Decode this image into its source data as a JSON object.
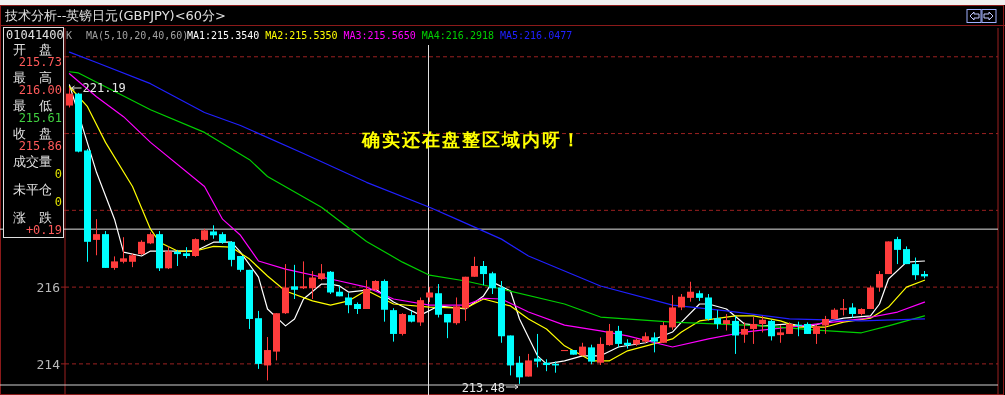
{
  "chart_data": {
    "type": "candlestick",
    "title": "技术分析--英镑日元(GBPJPY)<60分>",
    "categories": [
      null,
      null,
      null,
      null,
      null,
      null,
      null,
      null,
      null,
      null,
      null,
      null,
      null,
      null,
      null,
      null,
      null,
      null,
      null,
      null,
      null,
      null,
      null,
      null,
      null,
      null,
      null,
      null,
      null,
      null,
      null,
      null,
      null,
      null,
      null,
      null,
      null,
      null,
      null,
      null,
      null,
      null,
      null,
      null,
      null,
      null,
      null,
      null,
      null,
      null,
      null,
      null,
      null,
      null,
      null,
      null,
      null,
      null,
      null,
      null,
      null,
      null,
      null,
      null,
      null,
      null,
      null,
      null,
      null,
      null,
      null,
      null,
      null,
      null,
      null,
      null,
      null,
      null,
      null,
      null,
      null,
      null,
      null,
      null,
      null,
      null,
      null,
      null,
      null,
      null,
      null,
      null,
      null,
      null,
      null,
      null
    ],
    "ohlc": [
      [
        220.73,
        221.19,
        220.68,
        221.04
      ],
      [
        221.04,
        221.06,
        219.51,
        219.53
      ],
      [
        219.56,
        219.6,
        216.66,
        217.18
      ],
      [
        217.23,
        217.77,
        216.83,
        217.38
      ],
      [
        217.38,
        217.46,
        216.5,
        216.5
      ],
      [
        216.5,
        216.8,
        216.45,
        216.67
      ],
      [
        216.66,
        217.3,
        216.62,
        216.75
      ],
      [
        216.66,
        216.87,
        216.52,
        216.83
      ],
      [
        216.86,
        217.22,
        216.84,
        217.18
      ],
      [
        217.14,
        217.43,
        217.12,
        217.38
      ],
      [
        217.38,
        217.46,
        216.42,
        216.49
      ],
      [
        216.49,
        217.06,
        216.47,
        216.93
      ],
      [
        216.92,
        216.97,
        216.55,
        216.86
      ],
      [
        216.88,
        217.04,
        216.75,
        216.81
      ],
      [
        216.81,
        217.27,
        216.79,
        217.25
      ],
      [
        217.23,
        217.52,
        217.2,
        217.48
      ],
      [
        217.45,
        217.61,
        217.26,
        217.35
      ],
      [
        217.38,
        217.43,
        217.13,
        217.16
      ],
      [
        217.18,
        217.2,
        216.54,
        216.71
      ],
      [
        216.81,
        216.81,
        216.4,
        216.45
      ],
      [
        216.45,
        216.45,
        214.91,
        215.17
      ],
      [
        215.19,
        215.38,
        213.87,
        214.0
      ],
      [
        213.96,
        214.7,
        213.57,
        214.36
      ],
      [
        214.32,
        215.32,
        214.09,
        215.32
      ],
      [
        215.32,
        216.6,
        215.3,
        215.99
      ],
      [
        216.02,
        216.58,
        215.69,
        215.93
      ],
      [
        215.97,
        216.67,
        215.95,
        216.02
      ],
      [
        215.97,
        216.42,
        215.69,
        216.25
      ],
      [
        216.21,
        216.6,
        216.18,
        216.36
      ],
      [
        216.4,
        216.42,
        215.82,
        215.86
      ],
      [
        215.88,
        216.03,
        215.76,
        215.76
      ],
      [
        215.73,
        215.84,
        215.32,
        215.53
      ],
      [
        215.56,
        215.6,
        215.3,
        215.43
      ],
      [
        215.43,
        216.18,
        215.43,
        215.95
      ],
      [
        215.93,
        216.18,
        215.92,
        216.16
      ],
      [
        216.16,
        216.2,
        215.1,
        215.41
      ],
      [
        215.4,
        215.45,
        214.58,
        214.78
      ],
      [
        214.78,
        215.32,
        214.74,
        215.3
      ],
      [
        215.27,
        215.38,
        215.08,
        215.1
      ],
      [
        215.08,
        215.73,
        214.99,
        215.66
      ],
      [
        215.73,
        216.0,
        215.61,
        215.86
      ],
      [
        215.84,
        216.08,
        215.21,
        215.28
      ],
      [
        215.3,
        215.3,
        214.67,
        215.08
      ],
      [
        215.06,
        215.73,
        215.02,
        215.5
      ],
      [
        215.45,
        216.27,
        215.12,
        216.27
      ],
      [
        216.27,
        216.79,
        216.27,
        216.55
      ],
      [
        216.55,
        216.68,
        216.05,
        216.34
      ],
      [
        216.36,
        216.4,
        215.82,
        215.97
      ],
      [
        215.99,
        216.16,
        214.55,
        214.72
      ],
      [
        214.74,
        214.74,
        213.7,
        213.96
      ],
      [
        214.03,
        214.2,
        213.48,
        213.65
      ],
      [
        213.67,
        214.26,
        213.67,
        214.09
      ],
      [
        214.14,
        214.78,
        213.91,
        214.06
      ],
      [
        214.03,
        214.12,
        213.81,
        213.97
      ],
      [
        214.0,
        214.06,
        213.77,
        213.96
      ],
      [
        214.36,
        214.36,
        214.36,
        214.36
      ],
      [
        214.36,
        214.36,
        214.24,
        214.24
      ],
      [
        214.22,
        214.55,
        214.22,
        214.45
      ],
      [
        214.43,
        214.5,
        213.99,
        214.06
      ],
      [
        214.03,
        214.69,
        213.97,
        214.52
      ],
      [
        214.49,
        215.04,
        214.47,
        214.86
      ],
      [
        214.86,
        214.99,
        214.43,
        214.52
      ],
      [
        214.55,
        214.64,
        214.4,
        214.49
      ],
      [
        214.51,
        214.66,
        214.47,
        214.63
      ],
      [
        214.58,
        214.82,
        214.54,
        214.72
      ],
      [
        214.69,
        214.82,
        214.3,
        214.58
      ],
      [
        214.55,
        215.09,
        214.55,
        215.01
      ],
      [
        214.95,
        215.79,
        214.89,
        215.47
      ],
      [
        215.47,
        215.82,
        215.4,
        215.75
      ],
      [
        215.72,
        216.14,
        215.62,
        215.88
      ],
      [
        215.84,
        215.91,
        215.64,
        215.72
      ],
      [
        215.73,
        215.82,
        215.13,
        215.17
      ],
      [
        215.19,
        215.4,
        214.91,
        215.04
      ],
      [
        215.04,
        215.3,
        214.87,
        215.14
      ],
      [
        215.12,
        215.25,
        214.26,
        214.74
      ],
      [
        214.76,
        215.08,
        214.55,
        214.91
      ],
      [
        214.91,
        215.22,
        214.52,
        215.04
      ],
      [
        215.04,
        215.25,
        214.82,
        215.15
      ],
      [
        215.12,
        215.15,
        214.61,
        214.72
      ],
      [
        214.75,
        215.01,
        214.55,
        214.82
      ],
      [
        214.78,
        215.08,
        214.78,
        215.04
      ],
      [
        215.02,
        215.1,
        214.72,
        214.99
      ],
      [
        215.04,
        215.08,
        214.78,
        214.78
      ],
      [
        214.78,
        215.02,
        214.52,
        214.98
      ],
      [
        215.0,
        215.25,
        214.78,
        215.17
      ],
      [
        215.17,
        215.45,
        215.17,
        215.41
      ],
      [
        215.41,
        215.69,
        215.26,
        215.45
      ],
      [
        215.47,
        215.58,
        215.2,
        215.3
      ],
      [
        215.3,
        215.45,
        215.26,
        215.43
      ],
      [
        215.43,
        216.04,
        215.43,
        215.99
      ],
      [
        215.99,
        216.42,
        215.88,
        216.34
      ],
      [
        216.34,
        217.19,
        216.34,
        217.19
      ],
      [
        217.25,
        217.31,
        216.6,
        216.97
      ],
      [
        216.99,
        217.06,
        216.6,
        216.6
      ],
      [
        216.6,
        216.77,
        216.19,
        216.31
      ],
      [
        216.34,
        216.42,
        216.23,
        216.28
      ]
    ],
    "colors": [
      "#ff3c3c",
      "#00ffff",
      "#00ffff",
      "#ff3c3c",
      "#00ffff",
      "#ff3c3c",
      "#ff3c3c",
      "#ff3c3c",
      "#ff3c3c",
      "#ff3c3c",
      "#00ffff",
      "#ff3c3c",
      "#00ffff",
      "#00ffff",
      "#ff3c3c",
      "#ff3c3c",
      "#00ffff",
      "#00ffff",
      "#00ffff",
      "#00ffff",
      "#00ffff",
      "#00ffff",
      "#ff3c3c",
      "#ff3c3c",
      "#ff3c3c",
      "#00ffff",
      "#ff3c3c",
      "#ff3c3c",
      "#ff3c3c",
      "#00ffff",
      "#00ffff",
      "#00ffff",
      "#00ffff",
      "#ff3c3c",
      "#ff3c3c",
      "#00ffff",
      "#00ffff",
      "#ff3c3c",
      "#00ffff",
      "#ff3c3c",
      "#ff3c3c",
      "#00ffff",
      "#00ffff",
      "#ff3c3c",
      "#ff3c3c",
      "#ff3c3c",
      "#00ffff",
      "#00ffff",
      "#00ffff",
      "#00ffff",
      "#00ffff",
      "#ff3c3c",
      "#00ffff",
      "#00ffff",
      "#00ffff",
      "#ff3c3c",
      "#00ffff",
      "#ff3c3c",
      "#00ffff",
      "#ff3c3c",
      "#ff3c3c",
      "#00ffff",
      "#00ffff",
      "#ff3c3c",
      "#ff3c3c",
      "#00ffff",
      "#ff3c3c",
      "#ff3c3c",
      "#ff3c3c",
      "#ff3c3c",
      "#00ffff",
      "#00ffff",
      "#00ffff",
      "#ff3c3c",
      "#00ffff",
      "#ff3c3c",
      "#ff3c3c",
      "#ff3c3c",
      "#00ffff",
      "#ff3c3c",
      "#ff3c3c",
      "#00ffff",
      "#00ffff",
      "#ff3c3c",
      "#ff3c3c",
      "#ff3c3c",
      "#ff3c3c",
      "#00ffff",
      "#ff3c3c",
      "#ff3c3c",
      "#ff3c3c",
      "#ff3c3c",
      "#00ffff",
      "#00ffff",
      "#00ffff",
      "#00ffff"
    ],
    "series": [
      {
        "name": "MA1:215.3540",
        "color": "#ffffff",
        "type": "line",
        "values": [
          221.27,
          null,
          null,
          218.99,
          null,
          217.77,
          216.91,
          null,
          216.81,
          216.94,
          null,
          216.94,
          null,
          null,
          216.94,
          null,
          217.17,
          null,
          217.17,
          216.91,
          null,
          216.26,
          215.43,
          null,
          214.99,
          215.17,
          215.69,
          null,
          216.08,
          216.08,
          216.03,
          215.87,
          null,
          null,
          215.95,
          null,
          215.61,
          null,
          null,
          215.27,
          null,
          215.51,
          null,
          null,
          215.43,
          null,
          215.77,
          216.13,
          null,
          215.9,
          215.17,
          null,
          214.21,
          214.0,
          null,
          214.08,
          null,
          214.21,
          null,
          214.21,
          null,
          214.44,
          null,
          null,
          214.55,
          null,
          null,
          214.83,
          215.09,
          null,
          215.56,
          215.56,
          null,
          215.43,
          null,
          215.04,
          null,
          214.99,
          null,
          null,
          215.04,
          null,
          214.96,
          null,
          215.09,
          null,
          215.19,
          null,
          null,
          215.25,
          215.56,
          216.21,
          null,
          216.65,
          null,
          216.68
        ]
      },
      {
        "name": "MA2:215.5350",
        "color": "#ffff00",
        "type": "line",
        "values": [
          221.22,
          null,
          220.7,
          null,
          219.77,
          null,
          null,
          218.62,
          null,
          217.51,
          217.17,
          null,
          216.94,
          null,
          216.94,
          null,
          217.06,
          null,
          217.04,
          null,
          216.73,
          null,
          216.29,
          null,
          215.9,
          null,
          null,
          215.64,
          null,
          215.53,
          null,
          215.64,
          null,
          215.92,
          null,
          null,
          215.56,
          null,
          null,
          null,
          215.48,
          null,
          null,
          null,
          215.45,
          null,
          215.69,
          null,
          null,
          215.51,
          null,
          215.17,
          null,
          214.91,
          null,
          214.47,
          null,
          null,
          214.08,
          null,
          214.08,
          null,
          214.34,
          null,
          null,
          null,
          null,
          214.65,
          214.83,
          null,
          215.12,
          null,
          null,
          null,
          215.25,
          null,
          215.25,
          null,
          null,
          215.12,
          null,
          214.96,
          null,
          null,
          214.96,
          null,
          215.09,
          null,
          null,
          215.19,
          null,
          215.48,
          null,
          216.0,
          null,
          216.18
        ]
      },
      {
        "name": "MA3:215.5650",
        "color": "#ff00ff",
        "type": "line",
        "values": [
          221.56,
          null,
          null,
          220.96,
          null,
          null,
          220.44,
          null,
          null,
          219.77,
          null,
          null,
          null,
          null,
          null,
          218.62,
          null,
          217.77,
          null,
          217.35,
          null,
          216.68,
          null,
          null,
          216.47,
          null,
          null,
          null,
          null,
          null,
          216.16,
          null,
          null,
          216.0,
          null,
          null,
          215.69,
          null,
          null,
          null,
          215.53,
          null,
          null,
          null,
          215.53,
          null,
          215.71,
          null,
          215.69,
          null,
          null,
          215.35,
          null,
          null,
          null,
          215.01,
          null,
          null,
          null,
          214.86,
          null,
          null,
          214.73,
          null,
          null,
          null,
          null,
          214.44,
          null,
          null,
          null,
          214.65,
          null,
          null,
          null,
          214.83,
          null,
          null,
          null,
          null,
          214.96,
          null,
          null,
          null,
          null,
          null,
          null,
          null,
          215.17,
          null,
          null,
          null,
          215.35,
          null,
          null,
          215.61
        ]
      },
      {
        "name": "MA4:216.2918",
        "color": "#00d000",
        "type": "line",
        "values": [
          221.61,
          221.58,
          null,
          null,
          null,
          null,
          null,
          null,
          null,
          220.62,
          null,
          null,
          null,
          null,
          null,
          220.03,
          null,
          null,
          null,
          null,
          219.32,
          null,
          218.88,
          null,
          null,
          null,
          null,
          null,
          218.08,
          null,
          null,
          null,
          null,
          217.19,
          null,
          null,
          null,
          216.65,
          null,
          null,
          216.31,
          null,
          null,
          null,
          216.16,
          null,
          null,
          null,
          215.95,
          null,
          null,
          null,
          null,
          null,
          null,
          215.56,
          null,
          null,
          null,
          215.22,
          null,
          null,
          null,
          null,
          null,
          null,
          null,
          215.09,
          null,
          null,
          null,
          null,
          null,
          null,
          null,
          null,
          null,
          214.99,
          null,
          null,
          null,
          null,
          null,
          214.88,
          null,
          null,
          null,
          null,
          214.81,
          null,
          null,
          214.99,
          null,
          null,
          null,
          215.25
        ]
      },
      {
        "name": "MA5:216.0477",
        "color": "#2020ff",
        "type": "line",
        "values": [
          222.12,
          null,
          null,
          221.85,
          null,
          null,
          null,
          null,
          null,
          221.3,
          null,
          null,
          null,
          null,
          null,
          220.55,
          null,
          null,
          null,
          220.21,
          null,
          null,
          null,
          null,
          null,
          null,
          219.48,
          null,
          null,
          null,
          null,
          null,
          null,
          218.73,
          null,
          null,
          null,
          null,
          null,
          null,
          218.08,
          null,
          null,
          217.77,
          null,
          null,
          null,
          null,
          217.25,
          null,
          null,
          216.81,
          null,
          null,
          null,
          null,
          null,
          null,
          null,
          216.03,
          null,
          null,
          null,
          null,
          null,
          null,
          null,
          215.53,
          null,
          null,
          null,
          null,
          null,
          215.38,
          null,
          null,
          null,
          null,
          null,
          null,
          215.17,
          null,
          null,
          null,
          null,
          null,
          null,
          null,
          215.12,
          null,
          null,
          null,
          null,
          null,
          null,
          215.17
        ]
      }
    ],
    "ylim": [
      213.45,
      222.75
    ],
    "yticks": [
      {
        "value": 214,
        "label": "214"
      },
      {
        "value": 216,
        "label": "216"
      },
      {
        "value": 218,
        "label": null
      },
      {
        "value": 220,
        "label": null
      },
      {
        "value": 222,
        "label": null
      }
    ],
    "tick_labels": "y",
    "grid": "y",
    "legend": "top left",
    "ref_lines": [
      {
        "axis": "y",
        "value": 217.51,
        "color": "#e0e0e0"
      }
    ],
    "annotations": [
      "01041400",
      "开　盘",
      "215.73",
      "最　高",
      "216.00",
      "最　低",
      "215.61",
      "收　盘",
      "215.86",
      "成交量",
      "0",
      "未平仓",
      "0",
      "涨　跌",
      "+0.19",
      "K",
      "MA(5,10,20,40,60)",
      "确实还在盘整区域内呀！",
      "221.19",
      "213.48"
    ]
  }
}
